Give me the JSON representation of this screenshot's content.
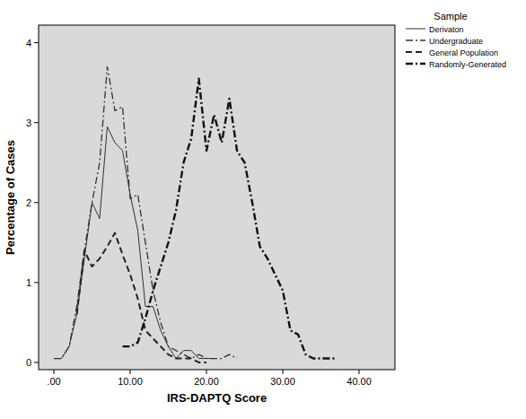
{
  "chart_data": {
    "type": "line",
    "x_label": "IRS-DAPTQ Score",
    "y_label": "Percentage of Cases",
    "legend_title": "Sample",
    "legend": "right",
    "xlim": [
      -2,
      44.7
    ],
    "ylim": [
      -0.09,
      4.22
    ],
    "xticks": [
      {
        "value": 0,
        "label": ".00"
      },
      {
        "value": 10,
        "label": "10.00"
      },
      {
        "value": 20,
        "label": "20.00"
      },
      {
        "value": 30,
        "label": "30.00"
      },
      {
        "value": 40,
        "label": "40.00"
      }
    ],
    "yticks": [
      0,
      1,
      2,
      3,
      4
    ],
    "x": [
      0,
      1,
      2,
      3,
      4,
      5,
      6,
      7,
      8,
      9,
      10,
      11,
      12,
      13,
      14,
      15,
      16,
      17,
      18,
      19,
      20,
      21,
      22,
      23,
      24,
      25,
      26,
      27,
      28,
      29,
      30,
      31,
      32,
      33,
      34,
      35,
      36,
      37
    ],
    "series": [
      {
        "name": "Derivaton",
        "color": "#333333",
        "line_style": "solid",
        "values": [
          0.05,
          0.05,
          0.2,
          0.6,
          1.3,
          2.0,
          1.8,
          2.95,
          2.75,
          2.65,
          2.1,
          1.65,
          0.7,
          0.7,
          0.4,
          0.2,
          0.05,
          0.15,
          0.15,
          0.05,
          0.05,
          0.05,
          null,
          null,
          null,
          null,
          null,
          null,
          null,
          null,
          null,
          null,
          null,
          null,
          null,
          null,
          null,
          null
        ]
      },
      {
        "name": "Undergraduate",
        "color": "#333333",
        "line_style": "dashdot",
        "values": [
          0.05,
          0.05,
          0.2,
          0.7,
          1.4,
          2.0,
          2.5,
          3.7,
          3.15,
          3.2,
          2.05,
          2.1,
          1.5,
          0.9,
          0.5,
          0.2,
          0.15,
          0.1,
          0.05,
          0.1,
          0.05,
          0.05,
          0.05,
          0.1,
          0.05,
          null,
          null,
          null,
          null,
          null,
          null,
          null,
          null,
          null,
          null,
          null,
          null,
          null
        ]
      },
      {
        "name": "General Population",
        "color": "#222222",
        "line_style": "dashed",
        "values": [
          null,
          null,
          null,
          0.6,
          1.4,
          1.2,
          1.3,
          1.45,
          1.62,
          1.35,
          1.1,
          0.8,
          0.4,
          0.3,
          0.2,
          0.1,
          0.05,
          0.05,
          0.05,
          0,
          0,
          null,
          null,
          null,
          null,
          null,
          null,
          null,
          null,
          null,
          null,
          null,
          null,
          null,
          null,
          null,
          null,
          null
        ]
      },
      {
        "name": "Randomly-Generated",
        "color": "#111111",
        "line_style": "dashdot",
        "values": [
          null,
          null,
          null,
          null,
          null,
          null,
          null,
          null,
          null,
          0.2,
          0.2,
          0.25,
          0.55,
          0.9,
          1.2,
          1.5,
          1.9,
          2.5,
          2.8,
          3.55,
          2.65,
          3.1,
          2.75,
          3.3,
          2.65,
          2.5,
          2.0,
          1.45,
          1.3,
          1.1,
          0.9,
          0.4,
          0.35,
          0.1,
          0.05,
          0.05,
          0.05,
          0.05
        ]
      }
    ]
  }
}
